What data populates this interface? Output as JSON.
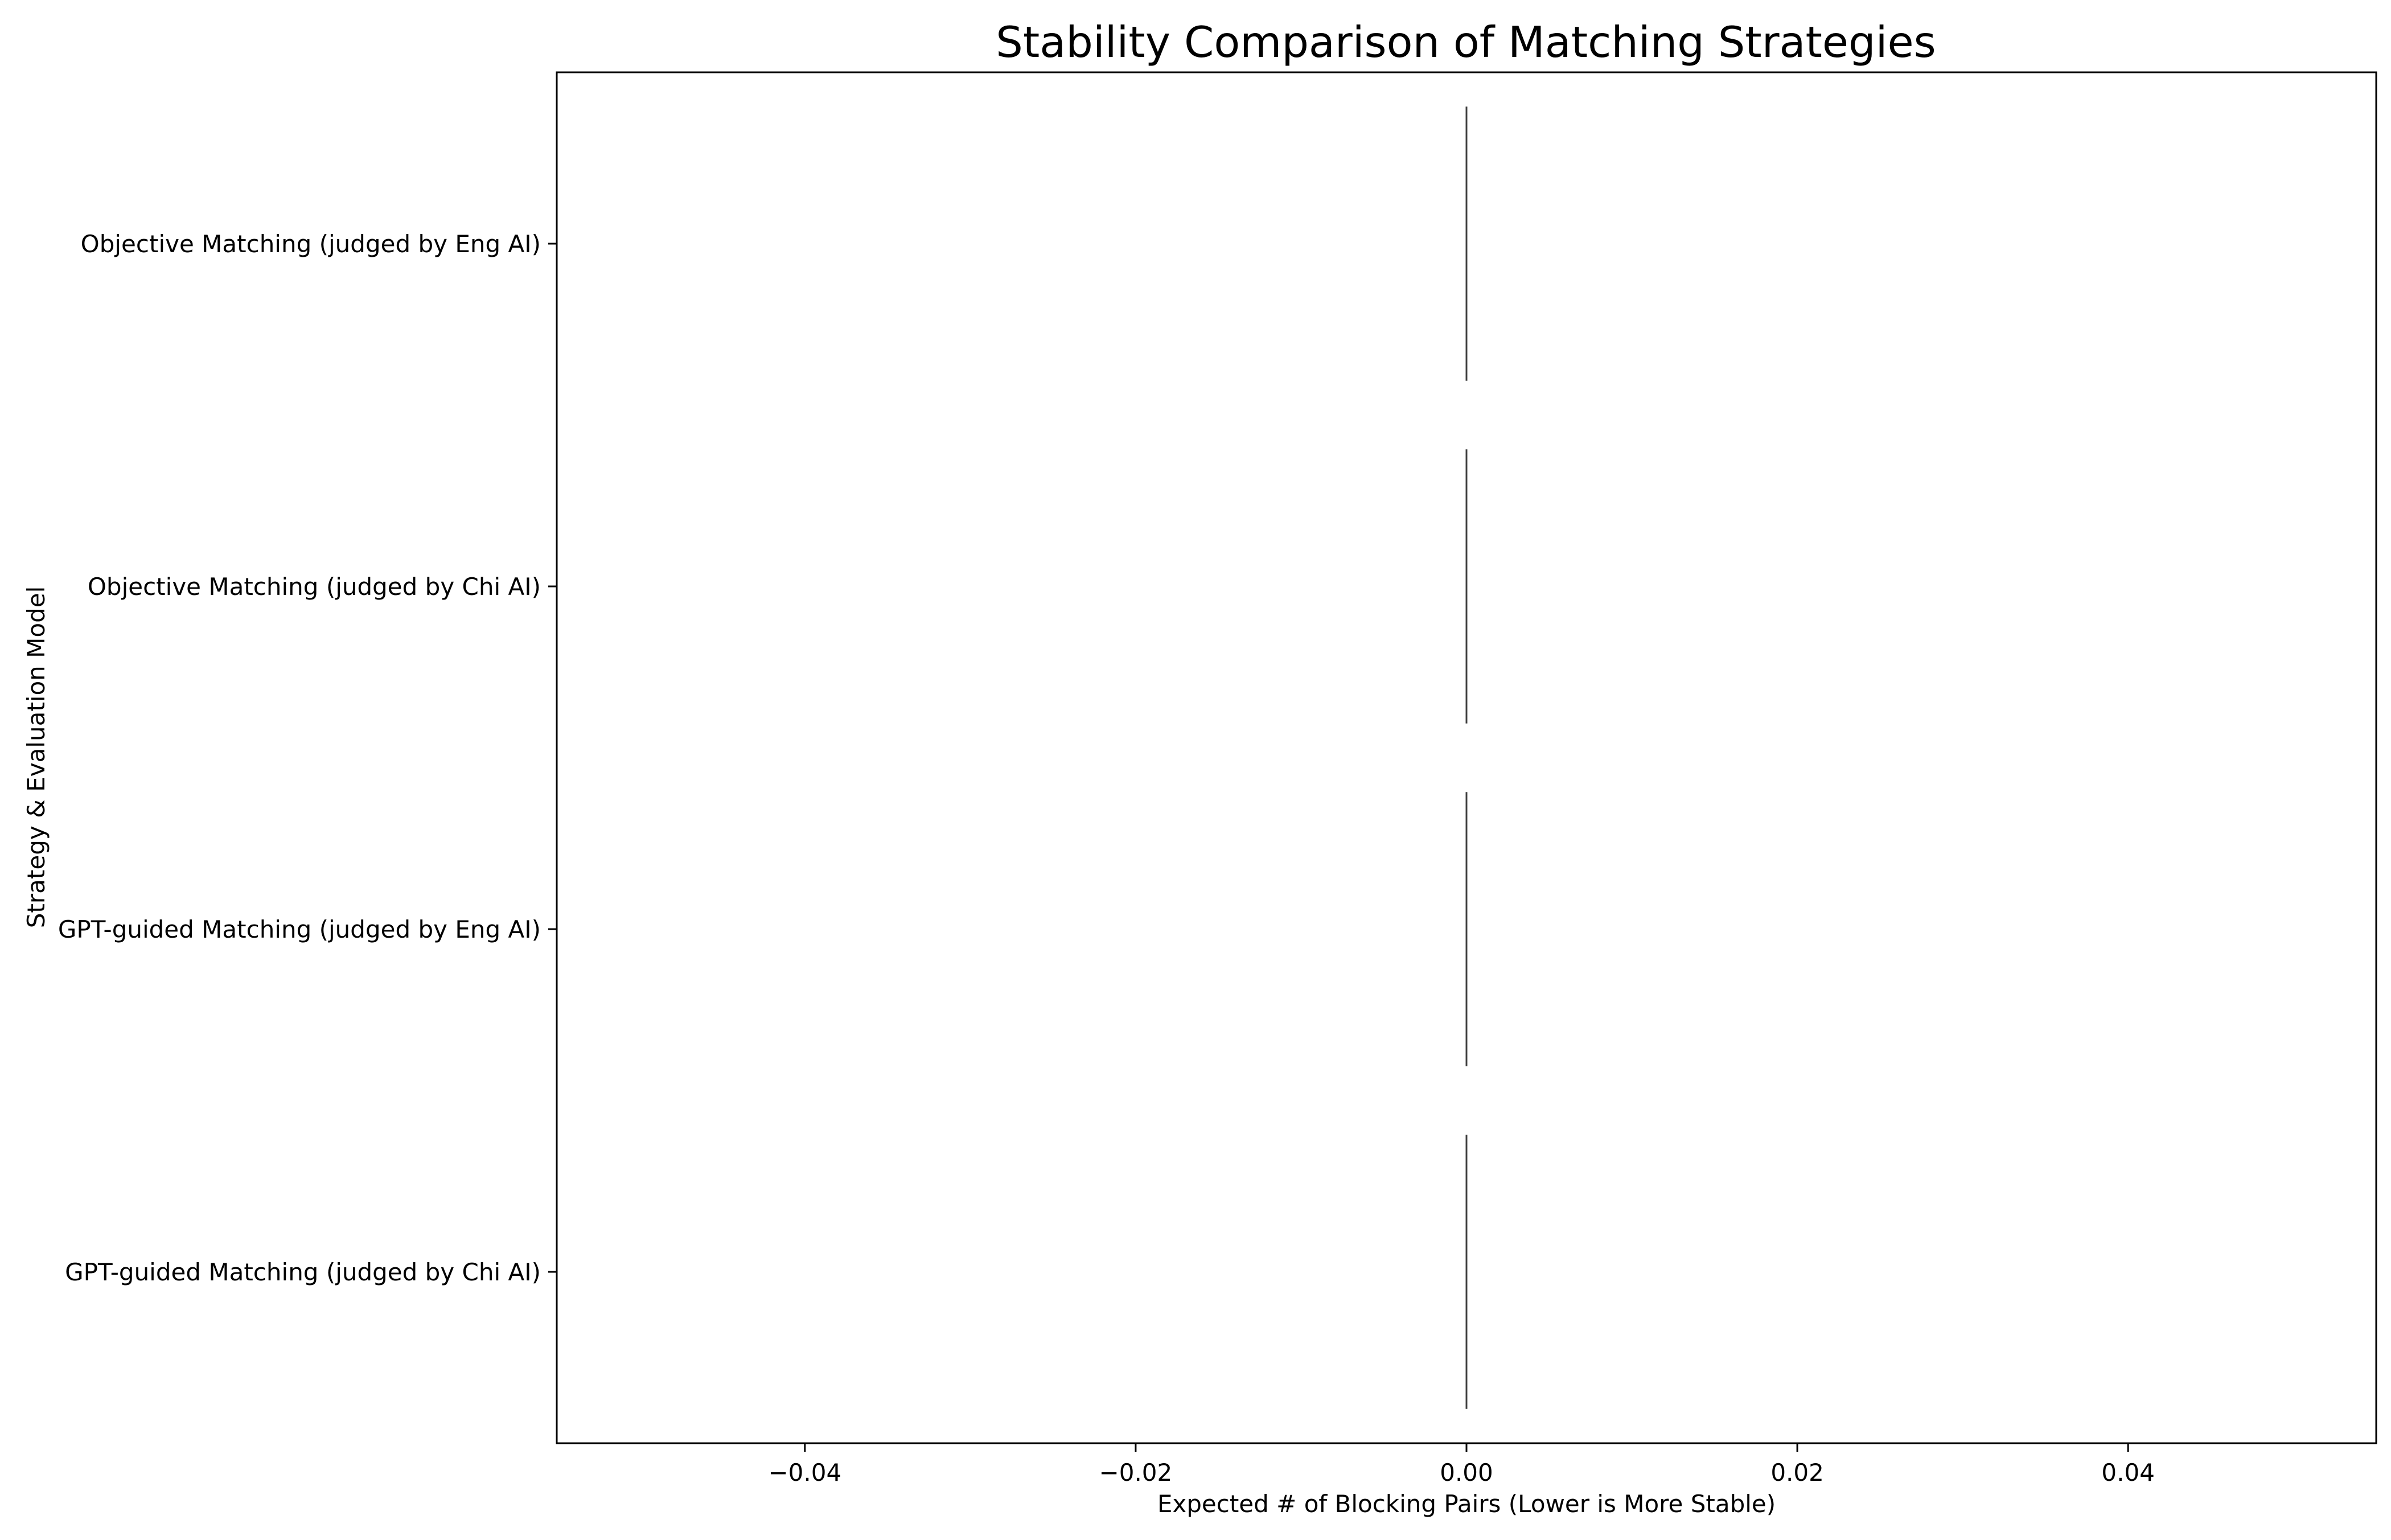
{
  "chart_data": {
    "type": "box",
    "orientation": "horizontal",
    "title": "Stability Comparison of Matching Strategies",
    "xlabel": "Expected # of Blocking Pairs (Lower is More Stable)",
    "ylabel": "Strategy & Evaluation Model",
    "xlim": [
      -0.055,
      0.055
    ],
    "x_ticks": [
      -0.04,
      -0.02,
      0.0,
      0.02,
      0.04
    ],
    "x_tick_labels": [
      "−0.04",
      "−0.02",
      "0.00",
      "0.02",
      "0.04"
    ],
    "categories": [
      "Objective Matching (judged by Eng AI)",
      "Objective Matching (judged by Chi AI)",
      "GPT-guided Matching (judged by Eng AI)",
      "GPT-guided Matching (judged by Chi AI)"
    ],
    "values": [
      0,
      0,
      0,
      0
    ],
    "grid": false,
    "legend": "none",
    "colors": {
      "axes": "#000000",
      "box_line": "#3f3f3f",
      "background": "#ffffff"
    }
  }
}
